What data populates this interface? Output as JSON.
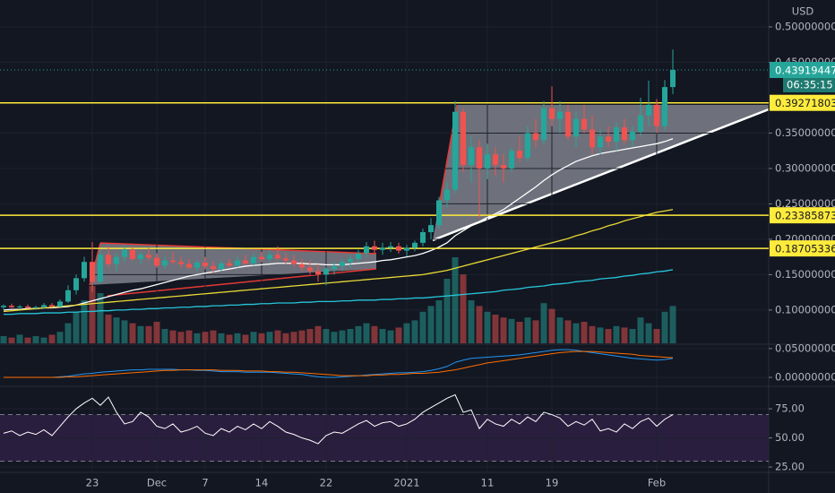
{
  "chart_data": {
    "type": "candlestick",
    "currency": "USD",
    "countdown": "06:35:15",
    "categories": [
      null,
      null,
      null,
      null,
      null,
      null,
      null,
      null,
      null,
      null,
      null,
      "23",
      null,
      null,
      null,
      null,
      null,
      null,
      null,
      "Dec",
      null,
      null,
      null,
      null,
      null,
      "7",
      null,
      null,
      null,
      null,
      null,
      null,
      "14",
      null,
      null,
      null,
      null,
      null,
      null,
      null,
      "22",
      null,
      null,
      null,
      null,
      null,
      null,
      null,
      null,
      null,
      "2021",
      null,
      null,
      null,
      null,
      null,
      null,
      null,
      null,
      null,
      "11",
      null,
      null,
      null,
      null,
      null,
      null,
      null,
      "19",
      null,
      null,
      null,
      null,
      null,
      null,
      null,
      null,
      null,
      null,
      null,
      null,
      "Feb",
      null,
      null
    ],
    "open": [
      0.104,
      0.106,
      0.104,
      0.105,
      0.103,
      0.104,
      0.107,
      0.105,
      0.112,
      0.128,
      0.145,
      0.168,
      0.14,
      0.178,
      0.165,
      0.175,
      0.185,
      0.172,
      0.178,
      0.174,
      0.163,
      0.17,
      0.168,
      0.165,
      0.16,
      0.167,
      0.162,
      0.158,
      0.166,
      0.163,
      0.17,
      0.166,
      0.175,
      0.172,
      0.178,
      0.173,
      0.17,
      0.165,
      0.16,
      0.155,
      0.15,
      0.158,
      0.162,
      0.168,
      0.172,
      0.18,
      0.19,
      0.185,
      0.188,
      0.19,
      0.184,
      0.188,
      0.195,
      0.21,
      0.22,
      0.255,
      0.27,
      0.38,
      0.305,
      0.33,
      0.3,
      0.32,
      0.305,
      0.3,
      0.325,
      0.315,
      0.35,
      0.34,
      0.385,
      0.37,
      0.38,
      0.345,
      0.37,
      0.355,
      0.33,
      0.345,
      0.338,
      0.358,
      0.34,
      0.352,
      0.375,
      0.39,
      0.36,
      0.415
    ],
    "high": [
      0.108,
      0.109,
      0.107,
      0.108,
      0.106,
      0.11,
      0.11,
      0.115,
      0.135,
      0.15,
      0.175,
      0.196,
      0.185,
      0.19,
      0.18,
      0.192,
      0.19,
      0.182,
      0.188,
      0.18,
      0.175,
      0.182,
      0.175,
      0.172,
      0.17,
      0.175,
      0.168,
      0.17,
      0.172,
      0.175,
      0.178,
      0.18,
      0.182,
      0.185,
      0.19,
      0.18,
      0.178,
      0.172,
      0.17,
      0.165,
      0.16,
      0.168,
      0.172,
      0.178,
      0.185,
      0.196,
      0.198,
      0.195,
      0.196,
      0.195,
      0.192,
      0.198,
      0.215,
      0.23,
      0.26,
      0.28,
      0.395,
      0.385,
      0.345,
      0.34,
      0.335,
      0.33,
      0.32,
      0.33,
      0.345,
      0.36,
      0.37,
      0.395,
      0.416,
      0.395,
      0.39,
      0.38,
      0.39,
      0.375,
      0.355,
      0.36,
      0.365,
      0.37,
      0.36,
      0.4,
      0.424,
      0.398,
      0.425,
      0.468
    ],
    "low": [
      0.101,
      0.103,
      0.101,
      0.102,
      0.1,
      0.102,
      0.103,
      0.104,
      0.11,
      0.122,
      0.14,
      0.125,
      0.138,
      0.16,
      0.155,
      0.168,
      0.17,
      0.165,
      0.17,
      0.16,
      0.158,
      0.165,
      0.16,
      0.158,
      0.155,
      0.158,
      0.152,
      0.155,
      0.16,
      0.16,
      0.164,
      0.163,
      0.168,
      0.168,
      0.17,
      0.165,
      0.162,
      0.155,
      0.15,
      0.14,
      0.135,
      0.15,
      0.155,
      0.16,
      0.168,
      0.175,
      0.18,
      0.178,
      0.182,
      0.18,
      0.176,
      0.183,
      0.19,
      0.2,
      0.215,
      0.245,
      0.265,
      0.295,
      0.28,
      0.23,
      0.285,
      0.29,
      0.28,
      0.295,
      0.31,
      0.31,
      0.33,
      0.335,
      0.36,
      0.35,
      0.34,
      0.33,
      0.35,
      0.32,
      0.32,
      0.33,
      0.325,
      0.335,
      0.33,
      0.345,
      0.36,
      0.35,
      0.355,
      0.405
    ],
    "close": [
      0.106,
      0.104,
      0.105,
      0.103,
      0.104,
      0.107,
      0.105,
      0.112,
      0.128,
      0.145,
      0.168,
      0.14,
      0.178,
      0.165,
      0.175,
      0.185,
      0.172,
      0.178,
      0.174,
      0.163,
      0.17,
      0.168,
      0.165,
      0.16,
      0.167,
      0.162,
      0.158,
      0.166,
      0.163,
      0.17,
      0.166,
      0.175,
      0.172,
      0.178,
      0.173,
      0.17,
      0.165,
      0.16,
      0.155,
      0.15,
      0.158,
      0.162,
      0.168,
      0.172,
      0.18,
      0.19,
      0.185,
      0.188,
      0.19,
      0.184,
      0.188,
      0.195,
      0.21,
      0.22,
      0.255,
      0.27,
      0.38,
      0.305,
      0.33,
      0.3,
      0.32,
      0.305,
      0.3,
      0.325,
      0.315,
      0.35,
      0.34,
      0.385,
      0.37,
      0.38,
      0.345,
      0.37,
      0.355,
      0.33,
      0.345,
      0.338,
      0.358,
      0.34,
      0.352,
      0.375,
      0.39,
      0.36,
      0.415,
      0.43919447
    ],
    "volume": [
      5,
      4,
      6,
      4,
      5,
      4,
      6,
      8,
      14,
      22,
      30,
      40,
      35,
      20,
      18,
      16,
      14,
      12,
      12,
      15,
      10,
      9,
      8,
      9,
      7,
      8,
      9,
      7,
      6,
      7,
      6,
      8,
      7,
      8,
      9,
      7,
      8,
      9,
      10,
      12,
      10,
      8,
      9,
      10,
      12,
      14,
      12,
      10,
      9,
      11,
      14,
      16,
      22,
      26,
      30,
      45,
      60,
      48,
      30,
      26,
      22,
      20,
      18,
      17,
      15,
      18,
      16,
      28,
      24,
      18,
      16,
      14,
      15,
      12,
      11,
      10,
      12,
      11,
      10,
      18,
      14,
      10,
      22,
      26
    ],
    "up_color": "#26a69a",
    "down_color": "#ef5350",
    "ylim": [
      0.053,
      0.538
    ],
    "yticks": [
      {
        "value": 0.5,
        "label": "0.50000000"
      },
      {
        "value": 0.45,
        "label": "0.45000000"
      },
      {
        "value": 0.35,
        "label": "0.35000000"
      },
      {
        "value": 0.3,
        "label": "0.30000000"
      },
      {
        "value": 0.25,
        "label": "0.25000000"
      },
      {
        "value": 0.2,
        "label": "0.20000000"
      },
      {
        "value": 0.15,
        "label": "0.15000000"
      },
      {
        "value": 0.1,
        "label": "0.10000000"
      }
    ],
    "levels": [
      0.39271803,
      0.23385873,
      0.18705336
    ],
    "level_color": "#ffeb3b",
    "moving_averages": [
      {
        "color": "#ffffff",
        "values": [
          0.1,
          0.101,
          0.101,
          0.102,
          0.102,
          0.103,
          0.103,
          0.104,
          0.105,
          0.107,
          0.11,
          0.113,
          0.116,
          0.119,
          0.122,
          0.125,
          0.128,
          0.13,
          0.133,
          0.136,
          0.139,
          0.142,
          0.145,
          0.148,
          0.15,
          0.152,
          0.154,
          0.156,
          0.158,
          0.16,
          0.162,
          0.163,
          0.164,
          0.165,
          0.166,
          0.166,
          0.166,
          0.166,
          0.165,
          0.165,
          0.164,
          0.164,
          0.164,
          0.165,
          0.166,
          0.167,
          0.168,
          0.17,
          0.171,
          0.173,
          0.175,
          0.177,
          0.18,
          0.184,
          0.189,
          0.195,
          0.205,
          0.212,
          0.219,
          0.225,
          0.231,
          0.236,
          0.242,
          0.25,
          0.258,
          0.266,
          0.274,
          0.283,
          0.291,
          0.298,
          0.304,
          0.31,
          0.314,
          0.318,
          0.321,
          0.323,
          0.325,
          0.327,
          0.329,
          0.331,
          0.333,
          0.335,
          0.338,
          0.342
        ]
      },
      {
        "color": "#e8d934",
        "values": [
          0.098,
          0.099,
          0.1,
          0.101,
          0.102,
          0.103,
          0.104,
          0.105,
          0.106,
          0.107,
          0.108,
          0.109,
          0.11,
          0.111,
          0.112,
          0.113,
          0.114,
          0.115,
          0.116,
          0.117,
          0.118,
          0.119,
          0.12,
          0.121,
          0.122,
          0.123,
          0.124,
          0.125,
          0.126,
          0.127,
          0.128,
          0.129,
          0.13,
          0.131,
          0.132,
          0.133,
          0.134,
          0.135,
          0.136,
          0.137,
          0.138,
          0.139,
          0.14,
          0.141,
          0.142,
          0.143,
          0.144,
          0.145,
          0.146,
          0.147,
          0.148,
          0.149,
          0.15,
          0.152,
          0.154,
          0.156,
          0.159,
          0.162,
          0.165,
          0.168,
          0.171,
          0.174,
          0.177,
          0.18,
          0.183,
          0.186,
          0.189,
          0.192,
          0.195,
          0.198,
          0.201,
          0.205,
          0.208,
          0.212,
          0.215,
          0.219,
          0.222,
          0.226,
          0.229,
          0.232,
          0.235,
          0.238,
          0.24,
          0.242
        ]
      },
      {
        "color": "#26c6da",
        "values": [
          0.094,
          0.094,
          0.095,
          0.095,
          0.095,
          0.096,
          0.096,
          0.096,
          0.097,
          0.097,
          0.098,
          0.098,
          0.099,
          0.099,
          0.1,
          0.1,
          0.101,
          0.101,
          0.102,
          0.102,
          0.103,
          0.103,
          0.104,
          0.104,
          0.105,
          0.105,
          0.106,
          0.106,
          0.107,
          0.107,
          0.108,
          0.108,
          0.109,
          0.109,
          0.11,
          0.11,
          0.11,
          0.111,
          0.111,
          0.112,
          0.112,
          0.112,
          0.113,
          0.113,
          0.114,
          0.114,
          0.114,
          0.115,
          0.115,
          0.116,
          0.116,
          0.117,
          0.117,
          0.118,
          0.119,
          0.12,
          0.121,
          0.122,
          0.123,
          0.124,
          0.125,
          0.126,
          0.128,
          0.129,
          0.13,
          0.132,
          0.133,
          0.134,
          0.136,
          0.137,
          0.138,
          0.14,
          0.141,
          0.142,
          0.144,
          0.145,
          0.146,
          0.148,
          0.149,
          0.151,
          0.152,
          0.154,
          0.155,
          0.157
        ]
      }
    ],
    "macd": {
      "ylim": [
        -0.014,
        0.056
      ],
      "yticks": [
        {
          "value": 0.05,
          "label": "0.05000000"
        },
        {
          "value": 0,
          "label": "0.00000000"
        }
      ],
      "series": [
        {
          "color": "#2196f3",
          "values": [
            0,
            0,
            0,
            0,
            0,
            0,
            0,
            0.001,
            0.002,
            0.004,
            0.006,
            0.007,
            0.009,
            0.01,
            0.011,
            0.012,
            0.013,
            0.013,
            0.014,
            0.014,
            0.014,
            0.014,
            0.013,
            0.013,
            0.012,
            0.012,
            0.011,
            0.01,
            0.01,
            0.01,
            0.009,
            0.009,
            0.009,
            0.009,
            0.008,
            0.007,
            0.006,
            0.005,
            0.003,
            0.001,
            0,
            0,
            0.001,
            0.002,
            0.003,
            0.004,
            0.005,
            0.006,
            0.007,
            0.008,
            0.008,
            0.009,
            0.01,
            0.012,
            0.015,
            0.019,
            0.026,
            0.03,
            0.033,
            0.034,
            0.035,
            0.036,
            0.037,
            0.038,
            0.039,
            0.041,
            0.043,
            0.045,
            0.047,
            0.048,
            0.048,
            0.047,
            0.045,
            0.043,
            0.041,
            0.039,
            0.037,
            0.035,
            0.033,
            0.032,
            0.031,
            0.03,
            0.031,
            0.033
          ]
        },
        {
          "color": "#ff6d00",
          "values": [
            0,
            0,
            0,
            0,
            0,
            0,
            0,
            0,
            0.001,
            0.001,
            0.002,
            0.003,
            0.004,
            0.005,
            0.006,
            0.007,
            0.008,
            0.009,
            0.01,
            0.011,
            0.012,
            0.012,
            0.013,
            0.013,
            0.013,
            0.013,
            0.013,
            0.012,
            0.012,
            0.012,
            0.011,
            0.011,
            0.011,
            0.01,
            0.01,
            0.009,
            0.009,
            0.008,
            0.007,
            0.006,
            0.005,
            0.004,
            0.003,
            0.003,
            0.003,
            0.003,
            0.004,
            0.004,
            0.005,
            0.005,
            0.006,
            0.007,
            0.007,
            0.008,
            0.009,
            0.011,
            0.013,
            0.016,
            0.019,
            0.022,
            0.025,
            0.027,
            0.029,
            0.031,
            0.033,
            0.035,
            0.037,
            0.039,
            0.041,
            0.043,
            0.044,
            0.045,
            0.045,
            0.045,
            0.044,
            0.043,
            0.042,
            0.041,
            0.04,
            0.038,
            0.037,
            0.036,
            0.035,
            0.034
          ]
        }
      ]
    },
    "rsi": {
      "color": "#ffffff",
      "ylim": [
        20.4,
        93.5
      ],
      "band": [
        30,
        70
      ],
      "band_color": "#2a1e3f",
      "yticks": [
        {
          "value": 75,
          "label": "75.00"
        },
        {
          "value": 50,
          "label": "50.00"
        },
        {
          "value": 25,
          "label": "25.00"
        }
      ],
      "values": [
        54,
        56,
        52,
        55,
        53,
        57,
        52,
        60,
        68,
        75,
        80,
        84,
        78,
        85,
        72,
        62,
        64,
        72,
        68,
        60,
        58,
        62,
        55,
        57,
        60,
        54,
        52,
        58,
        55,
        60,
        57,
        62,
        58,
        64,
        60,
        55,
        53,
        50,
        48,
        45,
        52,
        55,
        54,
        58,
        62,
        65,
        60,
        63,
        64,
        60,
        62,
        66,
        72,
        76,
        80,
        84,
        87,
        72,
        74,
        58,
        66,
        62,
        60,
        66,
        62,
        68,
        64,
        72,
        70,
        67,
        60,
        64,
        61,
        66,
        56,
        58,
        55,
        62,
        58,
        64,
        67,
        60,
        66,
        70
      ]
    }
  }
}
